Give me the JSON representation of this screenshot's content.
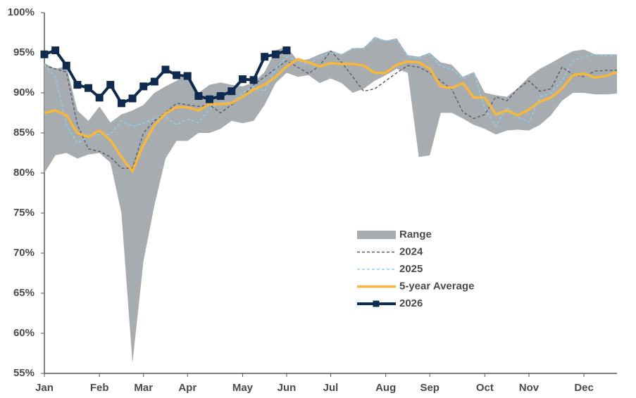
{
  "chart_data": {
    "type": "line",
    "categories": [
      "Jan",
      null,
      null,
      null,
      null,
      "Feb",
      null,
      null,
      null,
      "Mar",
      null,
      null,
      null,
      "Apr",
      null,
      null,
      null,
      null,
      "May",
      null,
      null,
      null,
      "Jun",
      null,
      null,
      null,
      "Jul",
      null,
      null,
      null,
      null,
      "Aug",
      null,
      null,
      null,
      "Sep",
      null,
      null,
      null,
      null,
      "Oct",
      null,
      null,
      null,
      "Nov",
      null,
      null,
      null,
      null,
      "Dec",
      null,
      null,
      null
    ],
    "ylim": [
      55,
      100
    ],
    "yticks": [
      {
        "value": 55,
        "label": "55%"
      },
      {
        "value": 60,
        "label": "60%"
      },
      {
        "value": 65,
        "label": "65%"
      },
      {
        "value": 70,
        "label": "70%"
      },
      {
        "value": 75,
        "label": "75%"
      },
      {
        "value": 80,
        "label": "80%"
      },
      {
        "value": 85,
        "label": "85%"
      },
      {
        "value": 90,
        "label": "90%"
      },
      {
        "value": 95,
        "label": "95%"
      },
      {
        "value": 100,
        "label": "100%"
      }
    ],
    "grid": false,
    "legend_position": "center-right",
    "series": [
      {
        "name": "Range",
        "color": "#a7acb1",
        "low": [
          80,
          82.2,
          82.5,
          81.8,
          82.3,
          82.5,
          81.3,
          75,
          56.3,
          69,
          76,
          81.8,
          84,
          84,
          85,
          85,
          85.5,
          86.5,
          86.2,
          86.5,
          88.5,
          91.2,
          92.5,
          92,
          92.2,
          91.2,
          91.8,
          91.2,
          90,
          90.5,
          91.5,
          92.2,
          93,
          92.5,
          82,
          82.2,
          87.5,
          87.5,
          86.8,
          86,
          85.5,
          84.8,
          85.3,
          85.4,
          85.3,
          86,
          87.2,
          89,
          90,
          90,
          89.8,
          89.8,
          89.9
        ],
        "high": [
          93.7,
          93,
          93.3,
          87.8,
          86.5,
          88.3,
          86.3,
          87.3,
          87.8,
          88.5,
          90,
          90.8,
          91.5,
          92.5,
          90,
          91,
          91.3,
          91,
          90.8,
          91.3,
          92.6,
          95.3,
          95.8,
          94,
          94.2,
          94.8,
          95.3,
          94.8,
          95.6,
          95.6,
          97,
          96.5,
          96.8,
          94.7,
          94.5,
          95,
          93.8,
          93.5,
          92,
          92.6,
          90,
          89.7,
          89.5,
          90.6,
          92,
          93,
          93.7,
          94.5,
          95.2,
          95.4,
          94.8,
          94.8,
          94.8
        ]
      },
      {
        "name": "2024",
        "color": "#5b6068",
        "dashed": true,
        "values": [
          93.4,
          93,
          92.6,
          86,
          83,
          82.7,
          82,
          80.6,
          80.6,
          85,
          86.5,
          87.5,
          88.7,
          88.5,
          88.3,
          88.5,
          87.5,
          88.5,
          89.5,
          91,
          92,
          93,
          94,
          93.2,
          92.4,
          93.4,
          95.2,
          93.8,
          92,
          90.2,
          90.5,
          91.5,
          92.5,
          93.4,
          93.2,
          92.5,
          91.5,
          90.4,
          87.6,
          86.8,
          87.3,
          89.5,
          89,
          90.5,
          91.5,
          90.2,
          90.5,
          93.2,
          92.3,
          92,
          92.7,
          92.8,
          92.8
        ]
      },
      {
        "name": "2025",
        "color": "#8fd0ef",
        "dashed": true,
        "values": [
          93.5,
          92,
          86,
          83.7,
          84.5,
          84.8,
          84.8,
          86.5,
          85.8,
          86.2,
          86.8,
          87,
          86,
          86.7,
          86.3,
          88,
          88.8,
          88.8,
          90,
          90.8,
          90.2,
          93,
          94.5,
          94,
          93.5,
          94.5,
          95,
          94.8,
          95.5,
          95.6,
          96.8,
          96.5,
          96.6,
          94.5,
          94.3,
          94.8,
          93.3,
          93,
          91.8,
          92.5,
          88,
          85.8,
          88.2,
          87,
          86.3,
          89.5,
          90,
          91.5,
          94,
          94.5,
          94.8,
          94.6,
          94.7
        ]
      },
      {
        "name": "5-year Average",
        "color": "#f6b73c",
        "values": [
          87.5,
          87.8,
          87.2,
          85,
          84.5,
          85.3,
          84.1,
          82,
          80.2,
          83.5,
          86,
          87.4,
          88.2,
          88.2,
          87.8,
          88.6,
          88.6,
          88.7,
          89.5,
          90.4,
          91,
          92,
          93.3,
          94.2,
          93.8,
          93.3,
          93.7,
          93.6,
          93.6,
          93.4,
          92.5,
          92.5,
          93.5,
          93.9,
          93.8,
          93,
          90.8,
          90.6,
          91.2,
          89.4,
          89.4,
          87.3,
          87.8,
          87.2,
          87.9,
          88.9,
          89.4,
          90.5,
          92.2,
          92.4,
          91.9,
          92.1,
          92.6
        ]
      },
      {
        "name": "2026",
        "color": "#0e2a4f",
        "markers": true,
        "values": [
          94.8,
          95.3,
          93.4,
          91,
          90.6,
          89.4,
          91,
          88.7,
          89.3,
          90.8,
          91.4,
          92.9,
          92.2,
          92.1,
          89.6,
          89.2,
          89.6,
          90.2,
          91.7,
          91.6,
          94.5,
          94.8,
          95.3,
          null,
          null,
          null,
          null,
          null,
          null,
          null,
          null,
          null,
          null,
          null,
          null,
          null,
          null,
          null,
          null,
          null,
          null,
          null,
          null,
          null,
          null,
          null,
          null,
          null,
          null,
          null,
          null,
          null,
          null
        ]
      }
    ]
  }
}
